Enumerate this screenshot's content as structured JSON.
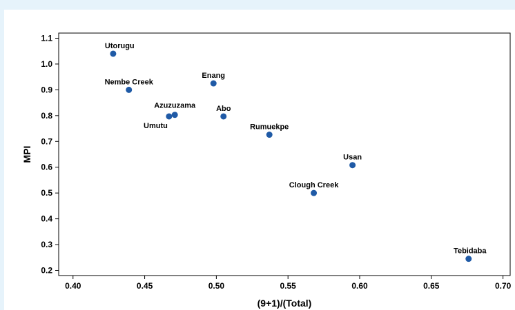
{
  "chart_data": {
    "type": "scatter",
    "title": "",
    "xlabel": "(9+1)/(Total)",
    "ylabel": "MPI",
    "xlim": [
      0.39,
      0.705
    ],
    "ylim": [
      0.18,
      1.12
    ],
    "xticks": [
      0.4,
      0.45,
      0.5,
      0.55,
      0.6,
      0.65,
      0.7
    ],
    "yticks": [
      0.2,
      0.3,
      0.4,
      0.5,
      0.6,
      0.7,
      0.8,
      0.9,
      1.0,
      1.1
    ],
    "xtick_labels": [
      "0.40",
      "0.45",
      "0.50",
      "0.55",
      "0.60",
      "0.65",
      "0.70"
    ],
    "ytick_labels": [
      "0.2",
      "0.3",
      "0.4",
      "0.5",
      "0.6",
      "0.7",
      "0.8",
      "0.9",
      "1.0",
      "1.1"
    ],
    "grid": false,
    "marker_color": "#1f5aa6",
    "points": [
      {
        "label": "Utorugu",
        "x": 0.428,
        "y": 1.04
      },
      {
        "label": "Nembe Creek",
        "x": 0.439,
        "y": 0.9
      },
      {
        "label": "Enang",
        "x": 0.498,
        "y": 0.925
      },
      {
        "label": "Azuzuzama",
        "x": 0.471,
        "y": 0.803
      },
      {
        "label": "Umutu",
        "x": 0.467,
        "y": 0.797
      },
      {
        "label": "Abo",
        "x": 0.505,
        "y": 0.797
      },
      {
        "label": "Rumuekpe",
        "x": 0.537,
        "y": 0.726
      },
      {
        "label": "Usan",
        "x": 0.595,
        "y": 0.608
      },
      {
        "label": "Clough Creek",
        "x": 0.568,
        "y": 0.5
      },
      {
        "label": "Tebidaba",
        "x": 0.676,
        "y": 0.245
      }
    ]
  }
}
